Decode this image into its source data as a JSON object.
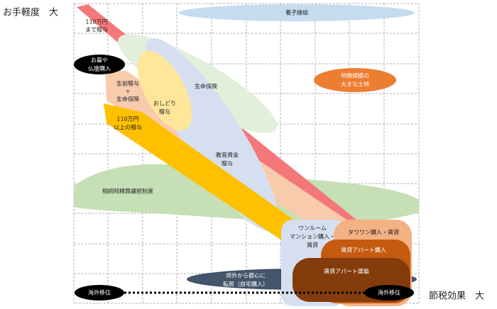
{
  "axes": {
    "y_label": "お手軽度　大",
    "x_label": "節税効果　大"
  },
  "nodes": [
    {
      "lines": [
        "養子縁組"
      ]
    },
    {
      "lines": [
        "地積規模の",
        "大きな土地"
      ]
    },
    {
      "lines": [
        "110万円",
        "まで贈与"
      ]
    },
    {
      "lines": [
        "お墓や",
        "仏壇購入"
      ]
    },
    {
      "lines": [
        "生前贈与",
        "+",
        "生命保険"
      ]
    },
    {
      "lines": [
        "生命保険"
      ]
    },
    {
      "lines": [
        "おしどり",
        "贈与"
      ]
    },
    {
      "lines": [
        "110万円",
        "以上の贈与"
      ]
    },
    {
      "lines": [
        "教育資金",
        "贈与"
      ]
    },
    {
      "lines": [
        "相続時精算課税制度"
      ]
    },
    {
      "lines": [
        "ワンルーム",
        "マンション購入・",
        "賃貸"
      ]
    },
    {
      "lines": [
        "タワワン購入・賃貸"
      ]
    },
    {
      "lines": [
        "賃貸アパート購入"
      ]
    },
    {
      "lines": [
        "賃貸アパート建築"
      ]
    },
    {
      "lines": [
        "郊外から都心に",
        "転居（自宅購入）"
      ]
    },
    {
      "lines": [
        "海外移住"
      ]
    },
    {
      "lines": [
        "海外移住"
      ]
    }
  ]
}
